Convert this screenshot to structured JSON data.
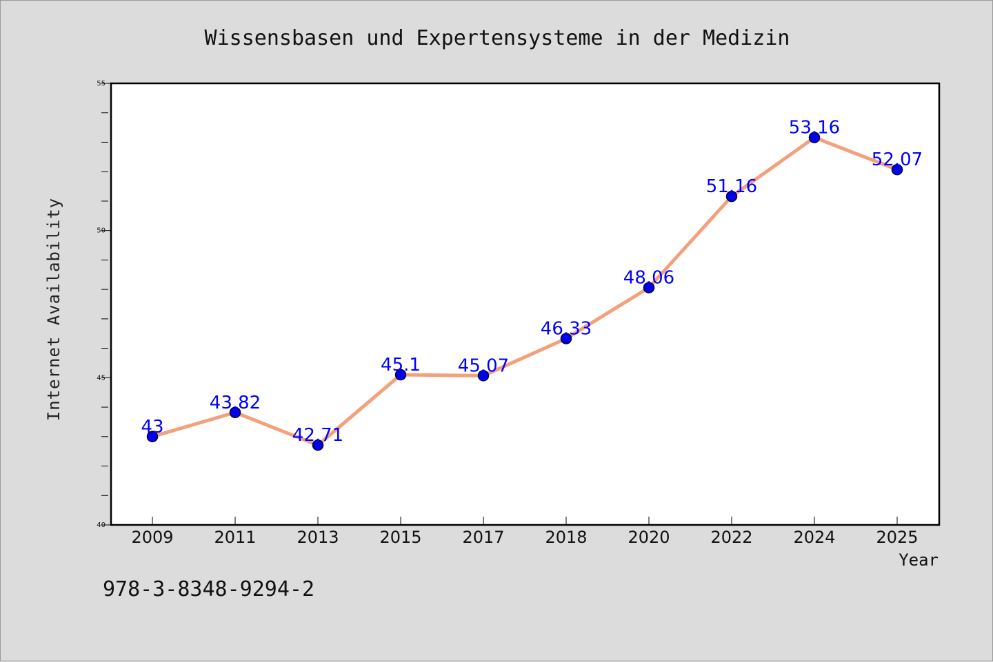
{
  "chart_data": {
    "type": "line",
    "title": "Wissensbasen und Expertensysteme in der Medizin",
    "xlabel": "Year",
    "ylabel": "Internet Availability",
    "categories": [
      "2009",
      "2011",
      "2013",
      "2015",
      "2017",
      "2018",
      "2020",
      "2022",
      "2024",
      "2025"
    ],
    "series": [
      {
        "values": [
          43,
          43.82,
          42.71,
          45.1,
          45.07,
          46.33,
          48.06,
          51.16,
          53.16,
          52.07
        ],
        "labels": [
          "43",
          "43.82",
          "42.71",
          "45.1",
          "45.07",
          "46.33",
          "48.06",
          "51.16",
          "53.16",
          "52.07"
        ]
      }
    ],
    "ylim": [
      40,
      55
    ],
    "yticks": [
      {
        "value": 40,
        "label": "40"
      },
      {
        "value": 45,
        "label": "45"
      },
      {
        "value": 50,
        "label": "50"
      },
      {
        "value": 55,
        "label": "55"
      }
    ],
    "grid": false,
    "colors": {
      "line": "#f4a07c",
      "marker": "#0000ee",
      "marker_edge": "#000033",
      "label": "#0000ff"
    }
  },
  "footer": {
    "isbn": "978-3-8348-9294-2"
  }
}
